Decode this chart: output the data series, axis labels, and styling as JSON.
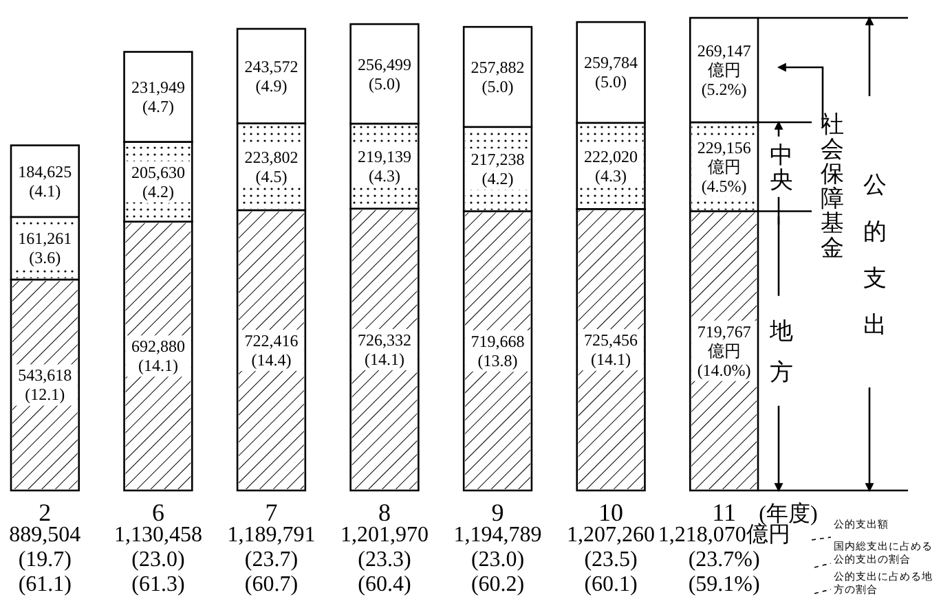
{
  "chart_data": {
    "type": "bar",
    "stacked": true,
    "xlabel": "(年度)",
    "categories": [
      "2",
      "6",
      "7",
      "8",
      "9",
      "10",
      "11"
    ],
    "series": [
      {
        "name": "地方",
        "color": "#ffffff",
        "values": [
          543618,
          692880,
          722416,
          726332,
          719668,
          725456,
          719767
        ],
        "value_labels": [
          "543,618\n(12.1)",
          "692,880\n(14.1)",
          "722,416\n(14.4)",
          "726,332\n(14.1)",
          "719,668\n(13.8)",
          "725,456\n(14.1)",
          "719,767\n億円\n(14.0%)"
        ]
      },
      {
        "name": "中央",
        "color": "#ffffff",
        "values": [
          161261,
          205630,
          223802,
          219139,
          217238,
          222020,
          229156
        ],
        "value_labels": [
          "161,261\n(3.6)",
          "205,630\n(4.2)",
          "223,802\n(4.5)",
          "219,139\n(4.3)",
          "217,238\n(4.2)",
          "222,020\n(4.3)",
          "229,156\n億円\n(4.5%)"
        ]
      },
      {
        "name": "社会保障基金",
        "color": "#ffffff",
        "values": [
          184625,
          231949,
          243572,
          256499,
          257882,
          259784,
          269147
        ],
        "value_labels": [
          "184,625\n(4.1)",
          "231,949\n(4.7)",
          "243,572\n(4.9)",
          "256,499\n(5.0)",
          "257,882\n(5.0)",
          "259,784\n(5.0)",
          "269,147\n億円\n(5.2%)"
        ]
      }
    ],
    "totals": [
      "889,504\n(19.7)\n(61.1)",
      "1,130,458\n(23.0)\n(61.3)",
      "1,189,791\n(23.7)\n(60.7)",
      "1,201,970\n(23.3)\n(60.4)",
      "1,194,789\n(23.0)\n(60.2)",
      "1,207,260\n(23.5)\n(60.1)",
      "1,218,070億円\n(23.7%)\n(59.1%)"
    ],
    "annotations": [
      "公的支出",
      "公的支出額",
      "国内総支出に占める公的支出の割合",
      "公的支出に占める地方の割合"
    ],
    "legend": "right"
  }
}
